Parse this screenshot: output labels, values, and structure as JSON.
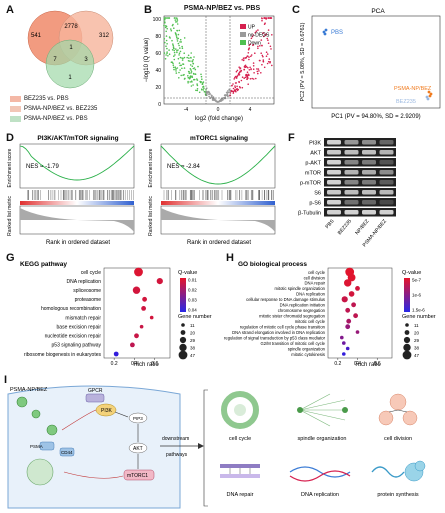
{
  "panels": {
    "A": "A",
    "B": "B",
    "C": "C",
    "D": "D",
    "E": "E",
    "F": "F",
    "G": "G",
    "H": "H",
    "I": "I"
  },
  "venn": {
    "counts": {
      "only_a": "541",
      "ab": "2778",
      "only_b": "312",
      "abc": "1",
      "ac": "7",
      "bc": "3",
      "only_c": "1"
    },
    "legend": [
      {
        "label": "BEZ235 vs. PBS",
        "color": "#f4b8a6"
      },
      {
        "label": "PSMA-NP/BEZ vs. BEZ235",
        "color": "#f2c6b6"
      },
      {
        "label": "PSMA-NP/BEZ vs. PBS",
        "color": "#bfe1c5"
      }
    ],
    "colors": {
      "a": "#f08a6a",
      "b": "#f4a98e",
      "c": "#9fd8a8"
    }
  },
  "volcano": {
    "title": "PSMA-NP/BEZ vs. PBS",
    "xlabel": "log2 (fold change)",
    "ylabel": "−log10 (Q value)",
    "xticks": [
      "-4",
      "0",
      "4"
    ],
    "yticks": [
      "0",
      "20",
      "40",
      "60",
      "80",
      "100"
    ],
    "legend": [
      {
        "label": "UP",
        "color": "#d6204f"
      },
      {
        "label": "no-DEGS",
        "color": "#9a9a9a"
      },
      {
        "label": "Down",
        "color": "#4fbf4f"
      }
    ]
  },
  "pca": {
    "title": "PCA",
    "xlabel": "PC1 (PV = 94.80%, SD = 2.9209)",
    "ylabel": "PC2 (PV = 5.08%, SD = 0.6761)",
    "groups": [
      {
        "label": "PBS",
        "color": "#3a7bd5"
      },
      {
        "label": "PSMA-NP/BEZ",
        "color": "#f07b1f"
      },
      {
        "label": "BEZ235",
        "color": "#9bb8e0"
      }
    ]
  },
  "gsea": [
    {
      "title": "PI3K/AKT/mTOR signaling",
      "nes": "NES = -1.79"
    },
    {
      "title": "mTORC1 signaling",
      "nes": "NES = -2.84"
    }
  ],
  "gsea_axes": {
    "ylabel_top": "Enrichment score",
    "ylabel_bottom": "Ranked list metric",
    "xlabel": "Rank in ordered dataset"
  },
  "western": {
    "proteins": [
      "PI3K",
      "AKT",
      "p-AKT",
      "mTOR",
      "p-mTOR",
      "S6",
      "p-S6",
      "β-Tubulin"
    ],
    "lanes": [
      "PBS",
      "BEZ235",
      "NP/BEZ",
      "PSMA-NP/BEZ"
    ]
  },
  "kegg": {
    "title": "KEGG pathway",
    "xlabel": "Rich ratio",
    "xticks": [
      "0.2",
      "0.4",
      "0.6"
    ],
    "terms": [
      "cell cycle",
      "DNA replication",
      "spliceosome",
      "proteasome",
      "homologous recombination",
      "mismatch repair",
      "base excision repair",
      "nucleotide excision repair",
      "p53 signaling pathway",
      "ribosome biogenesis in eukaryotes"
    ],
    "qvalue_label": "Q-value",
    "qvalue_ticks": [
      "0.01",
      "0.02",
      "0.03",
      "0.04"
    ],
    "gene_label": "Gene number",
    "gene_sizes": [
      "11",
      "20",
      "29",
      "38",
      "47"
    ]
  },
  "go": {
    "title": "GO biological process",
    "xlabel": "Rich ratio",
    "xticks": [
      "0.2",
      "0.4",
      "0.6"
    ],
    "terms": [
      "cell cycle",
      "cell division",
      "DNA repair",
      "mitotic spindle organization",
      "DNA replication",
      "cellular response to DNA damage stimulus",
      "DNA replication initiation",
      "chromosome segregation",
      "mitotic sister chromatid segregation",
      "mitotic cell cycle",
      "regulation of mitotic cell cycle phase transition",
      "DNA strand elongation involved in DNA replication",
      "regulation of signal transduction by p53 class mediator",
      "G2/M transition of mitotic cell cycle",
      "spindle organization",
      "mitotic cytokinesis"
    ],
    "qvalue_label": "Q-value",
    "qvalue_ticks": [
      "5e-7",
      "1e-6",
      "1.5e-6"
    ],
    "gene_label": "Gene number",
    "gene_sizes": [
      "11",
      "20",
      "29",
      "38",
      "47"
    ]
  },
  "schematic": {
    "cell_label": "PSMA-NP/BEZ",
    "nodes": [
      "GPCR",
      "PI3K",
      "PIP3",
      "AKT",
      "mTORC1",
      "PSMA",
      "CD44"
    ],
    "arrow_label": "downstream pathways",
    "outcomes": [
      "cell cycle",
      "spindle organization",
      "cell division",
      "DNA repair",
      "DNA replication",
      "protein synthesis"
    ]
  }
}
